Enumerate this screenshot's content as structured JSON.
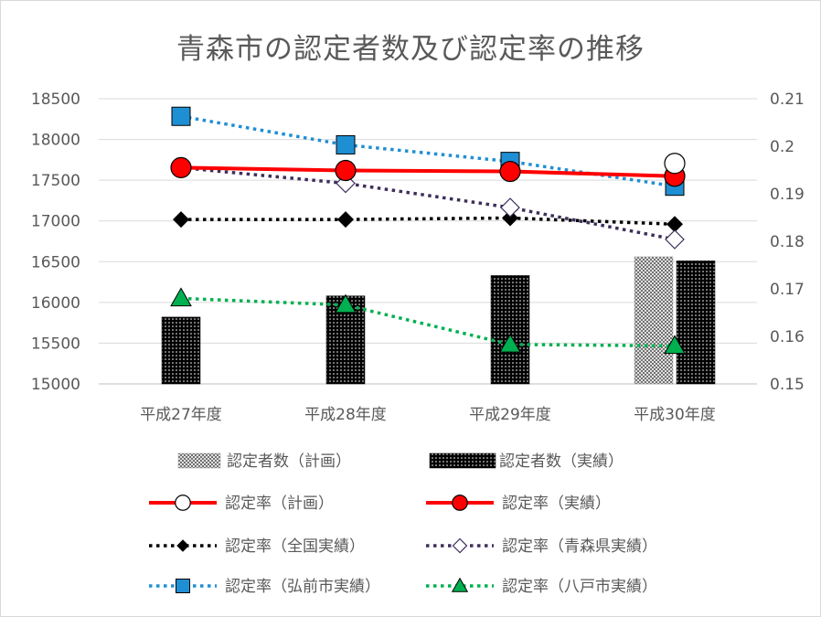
{
  "chart_data": {
    "type": "bar",
    "title": "青森市の認定者数及び認定率の推移",
    "categories": [
      "平成27年度",
      "平成28年度",
      "平成29年度",
      "平成30年度"
    ],
    "ylim_left": [
      15000,
      18500
    ],
    "yticks_left": [
      "15000",
      "15500",
      "16000",
      "16500",
      "17000",
      "17500",
      "18000",
      "18500"
    ],
    "ylim_right": [
      0.15,
      0.21
    ],
    "yticks_right": [
      "0.15",
      "0.16",
      "0.17",
      "0.18",
      "0.19",
      "0.2",
      "0.21"
    ],
    "grid": true,
    "legend_position": "bottom",
    "bar_series": [
      {
        "name": "認定者数（計画）",
        "axis": "left",
        "pattern": "crosshatch",
        "color": "#bfbfbf",
        "values": [
          null,
          null,
          null,
          16560
        ]
      },
      {
        "name": "認定者数（実績）",
        "axis": "left",
        "pattern": "dots",
        "color": "#000000",
        "values": [
          15820,
          16080,
          16330,
          16510
        ]
      }
    ],
    "line_series": [
      {
        "name": "認定率（計画）",
        "axis": "right",
        "color": "#ff0000",
        "marker": "circle-open",
        "dash": "solid",
        "values": [
          null,
          null,
          null,
          0.1964
        ]
      },
      {
        "name": "認定率（実績）",
        "axis": "right",
        "color": "#ff0000",
        "marker": "circle-red",
        "dash": "solid",
        "values": [
          0.1955,
          0.1949,
          0.1947,
          0.1937
        ]
      },
      {
        "name": "認定率（全国実績）",
        "axis": "right",
        "color": "#000000",
        "marker": "diamond-black",
        "dash": "dotted",
        "values": [
          0.1846,
          0.1846,
          0.1849,
          0.1836
        ]
      },
      {
        "name": "認定率（青森県実績）",
        "axis": "right",
        "color": "#3d2f5b",
        "marker": "diamond-open",
        "dash": "dotted",
        "values": [
          0.1955,
          0.1922,
          0.1871,
          0.1804
        ]
      },
      {
        "name": "認定率（弘前市実績）",
        "axis": "right",
        "color": "#1f8fd3",
        "marker": "square-blue",
        "dash": "dotted",
        "values": [
          0.2063,
          0.2003,
          0.1968,
          0.1916
        ]
      },
      {
        "name": "認定率（八戸市実績）",
        "axis": "right",
        "color": "#00b050",
        "marker": "triangle-green",
        "dash": "dotted",
        "values": [
          0.168,
          0.1666,
          0.1583,
          0.158
        ]
      }
    ]
  }
}
